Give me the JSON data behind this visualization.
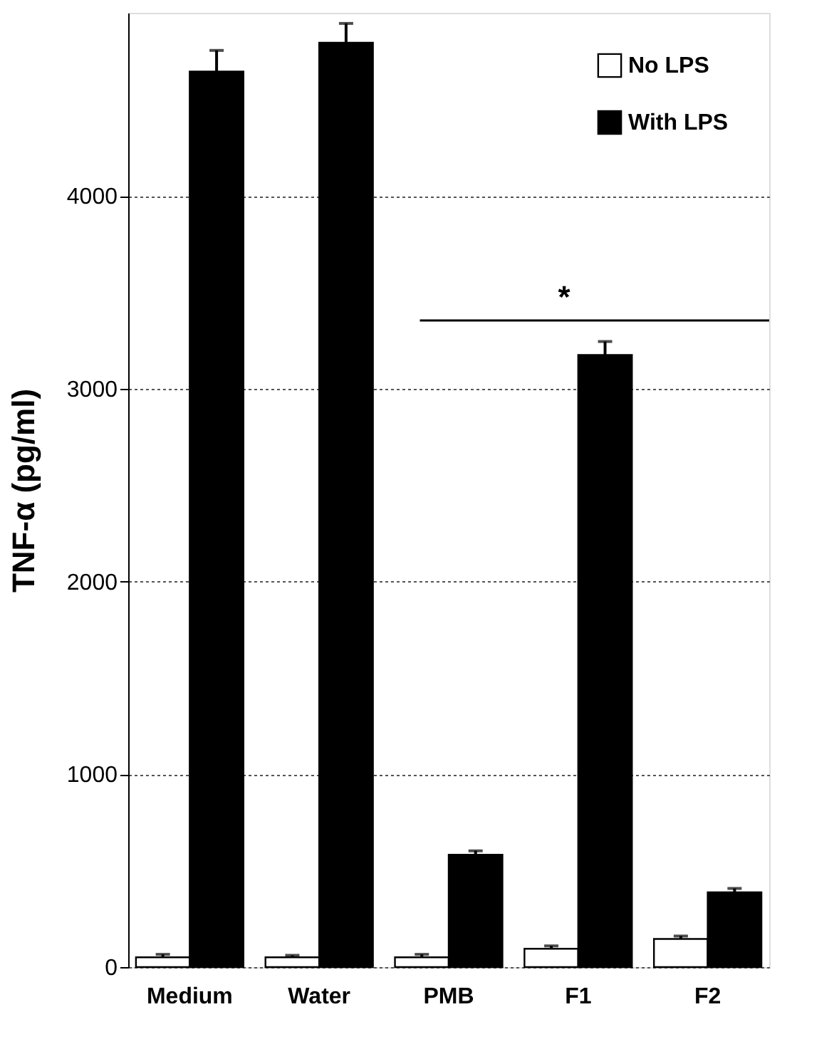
{
  "chart_data": {
    "type": "bar",
    "ylabel": "TNF-α (pg/ml)",
    "categories": [
      "Medium",
      "Water",
      "PMB",
      "F1",
      "F2"
    ],
    "series": [
      {
        "name": "No LPS",
        "color": "#ffffff",
        "values": [
          51,
          51,
          51,
          95,
          146
        ],
        "errors": [
          15,
          10,
          15,
          15,
          15
        ]
      },
      {
        "name": "With LPS",
        "color": "#000000",
        "values": [
          4645,
          4795,
          583,
          3175,
          388
        ],
        "errors": [
          110,
          100,
          20,
          70,
          20
        ]
      }
    ],
    "ylim": [
      0,
      4950
    ],
    "yticks": [
      0,
      1000,
      2000,
      3000,
      4000
    ],
    "grid": "y",
    "legend": "top right",
    "annotations": [
      "*"
    ]
  }
}
